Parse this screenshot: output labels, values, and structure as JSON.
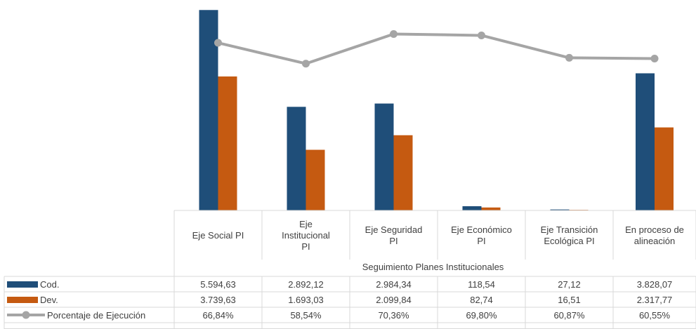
{
  "chart_data": {
    "type": "bar",
    "axis_title": "Seguimiento Planes Institucionales",
    "categories": [
      [
        "Eje Social PI"
      ],
      [
        "Eje",
        "Institucional",
        "PI"
      ],
      [
        "Eje Seguridad",
        "PI"
      ],
      [
        "Eje Económico",
        "PI"
      ],
      [
        "Eje Transición",
        "Ecológica PI"
      ],
      [
        "En proceso de",
        "alineación"
      ]
    ],
    "series": [
      {
        "name": "Cod.",
        "kind": "bar",
        "color": "#1f4e79",
        "values": [
          5594.63,
          2892.12,
          2984.34,
          118.54,
          27.12,
          3828.07
        ],
        "labels": [
          "5.594,63",
          "2.892,12",
          "2.984,34",
          "118,54",
          "27,12",
          "3.828,07"
        ]
      },
      {
        "name": "Dev.",
        "kind": "bar",
        "color": "#c55a11",
        "values": [
          3739.63,
          1693.03,
          2099.84,
          82.74,
          16.51,
          2317.77
        ],
        "labels": [
          "3.739,63",
          "1.693,03",
          "2.099,84",
          "82,74",
          "16,51",
          "2.317,77"
        ]
      },
      {
        "name": "Porcentaje de Ejecución",
        "kind": "line",
        "color": "#a5a5a5",
        "values": [
          66.84,
          58.54,
          70.36,
          69.8,
          60.87,
          60.55
        ],
        "labels": [
          "66,84%",
          "58,54%",
          "70,36%",
          "69,80%",
          "60,87%",
          "60,55%"
        ]
      }
    ],
    "ylim_bars": [
      0,
      5600
    ],
    "ylim_line": [
      0,
      80
    ],
    "grid": false,
    "legend": "data-table"
  }
}
